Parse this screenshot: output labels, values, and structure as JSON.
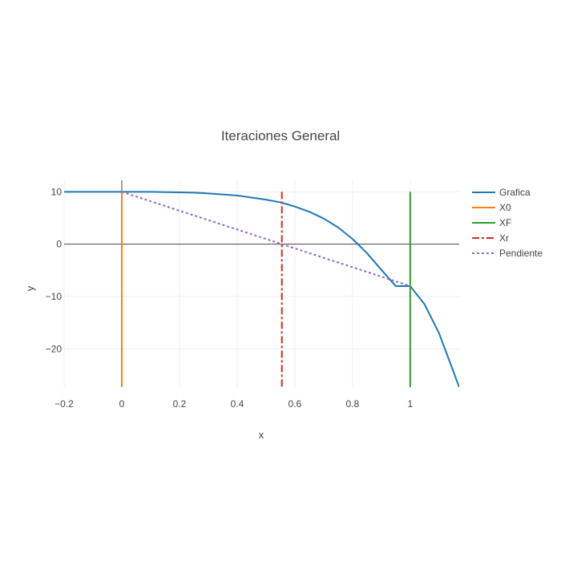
{
  "chart_data": {
    "type": "line",
    "title": "Iteraciones General",
    "xlabel": "x",
    "ylabel": "y",
    "xlim": [
      -0.2,
      1.17
    ],
    "ylim": [
      -27.3,
      12.2
    ],
    "grid": true,
    "legend_position": "right",
    "xticks": [
      {
        "value": -0.2,
        "label": "−0.2"
      },
      {
        "value": 0,
        "label": "0"
      },
      {
        "value": 0.2,
        "label": "0.2"
      },
      {
        "value": 0.4,
        "label": "0.4"
      },
      {
        "value": 0.6,
        "label": "0.6"
      },
      {
        "value": 0.8,
        "label": "0.8"
      },
      {
        "value": 1,
        "label": "1"
      }
    ],
    "yticks": [
      {
        "value": 10,
        "label": "10"
      },
      {
        "value": 0,
        "label": "0"
      },
      {
        "value": -10,
        "label": "−10"
      },
      {
        "value": -20,
        "label": "−20"
      }
    ],
    "series": [
      {
        "name": "Grafica",
        "color": "#1f77b4",
        "dash": "solid",
        "x": [
          -0.2,
          -0.1,
          0,
          0.1,
          0.2,
          0.25,
          0.3,
          0.35,
          0.4,
          0.45,
          0.5,
          0.55,
          0.6,
          0.65,
          0.7,
          0.75,
          0.8,
          0.85,
          0.9,
          0.95,
          1.0,
          1.05,
          1.1,
          1.17
        ],
        "y": [
          10.0,
          10.0,
          10.0,
          10.0,
          9.9,
          9.85,
          9.7,
          9.5,
          9.3,
          8.9,
          8.5,
          8.0,
          7.2,
          6.2,
          4.9,
          3.2,
          1.0,
          -1.7,
          -4.9,
          -8.0,
          -8.0,
          -11.5,
          -17.0,
          -27.3
        ]
      },
      {
        "name": "X0",
        "color": "#ff7f0e",
        "dash": "solid",
        "x": [
          0,
          0
        ],
        "y": [
          10.0,
          -27.3
        ]
      },
      {
        "name": "XF",
        "color": "#2ca02c",
        "dash": "solid",
        "x": [
          1,
          1
        ],
        "y": [
          10.0,
          -27.3
        ]
      },
      {
        "name": "Xr",
        "color": "#d62728",
        "dash": "dashdot",
        "x": [
          0.555,
          0.555
        ],
        "y": [
          10.0,
          -27.3
        ]
      },
      {
        "name": "Pendiente",
        "color": "#9467bd",
        "dash": "dot",
        "x": [
          0,
          1
        ],
        "y": [
          10.0,
          -8.0
        ]
      }
    ]
  }
}
